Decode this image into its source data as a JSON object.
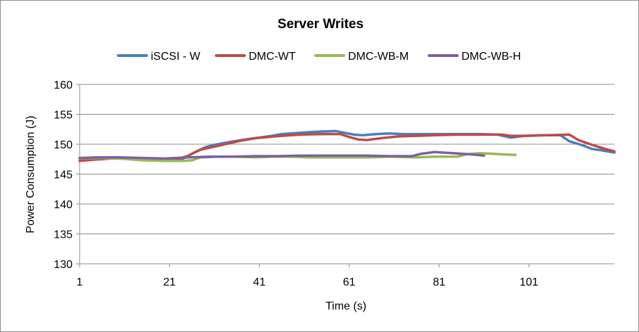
{
  "chart_data": {
    "type": "line",
    "title": "Server Writes",
    "xlabel": "Time (s)",
    "ylabel": "Power Consumption (J)",
    "xlim": [
      1,
      120
    ],
    "ylim": [
      130,
      160
    ],
    "y_ticks": [
      130,
      135,
      140,
      145,
      150,
      155,
      160
    ],
    "x_ticks": [
      1,
      21,
      41,
      61,
      81,
      101
    ],
    "grid": "horizontal",
    "legend": "top",
    "series": [
      {
        "name": "iSCSI - W",
        "color": "#4a7ebb",
        "points": [
          [
            1,
            147.6
          ],
          [
            5,
            147.8
          ],
          [
            10,
            147.7
          ],
          [
            15,
            147.6
          ],
          [
            20,
            147.5
          ],
          [
            23,
            147.6
          ],
          [
            25,
            148.0
          ],
          [
            27,
            148.8
          ],
          [
            29,
            149.5
          ],
          [
            31,
            149.9
          ],
          [
            34,
            150.3
          ],
          [
            37,
            150.7
          ],
          [
            40,
            151.0
          ],
          [
            43,
            151.3
          ],
          [
            46,
            151.7
          ],
          [
            50,
            151.9
          ],
          [
            54,
            152.1
          ],
          [
            58,
            152.2
          ],
          [
            60,
            151.9
          ],
          [
            62,
            151.6
          ],
          [
            64,
            151.5
          ],
          [
            67,
            151.7
          ],
          [
            70,
            151.8
          ],
          [
            73,
            151.7
          ],
          [
            80,
            151.7
          ],
          [
            90,
            151.7
          ],
          [
            94,
            151.6
          ],
          [
            97,
            151.1
          ],
          [
            100,
            151.4
          ],
          [
            104,
            151.5
          ],
          [
            108,
            151.5
          ],
          [
            110,
            150.5
          ],
          [
            113,
            149.8
          ],
          [
            115,
            149.2
          ],
          [
            117,
            149.0
          ],
          [
            120,
            148.6
          ]
        ]
      },
      {
        "name": "DMC-WT",
        "color": "#be4b48",
        "points": [
          [
            1,
            147.2
          ],
          [
            4,
            147.4
          ],
          [
            8,
            147.6
          ],
          [
            12,
            147.6
          ],
          [
            16,
            147.5
          ],
          [
            20,
            147.5
          ],
          [
            24,
            147.6
          ],
          [
            26,
            148.4
          ],
          [
            28,
            149.1
          ],
          [
            31,
            149.6
          ],
          [
            34,
            150.1
          ],
          [
            37,
            150.6
          ],
          [
            40,
            151.0
          ],
          [
            43,
            151.2
          ],
          [
            46,
            151.4
          ],
          [
            50,
            151.6
          ],
          [
            55,
            151.7
          ],
          [
            59,
            151.7
          ],
          [
            61,
            151.2
          ],
          [
            63,
            150.8
          ],
          [
            65,
            150.7
          ],
          [
            68,
            151.0
          ],
          [
            72,
            151.3
          ],
          [
            76,
            151.4
          ],
          [
            80,
            151.5
          ],
          [
            85,
            151.6
          ],
          [
            90,
            151.6
          ],
          [
            95,
            151.6
          ],
          [
            97,
            151.4
          ],
          [
            100,
            151.4
          ],
          [
            105,
            151.5
          ],
          [
            110,
            151.6
          ],
          [
            112,
            150.7
          ],
          [
            115,
            149.9
          ],
          [
            118,
            149.2
          ],
          [
            120,
            148.8
          ]
        ]
      },
      {
        "name": "DMC-WB-M",
        "color": "#98b954",
        "points": [
          [
            1,
            147.6
          ],
          [
            5,
            147.7
          ],
          [
            10,
            147.6
          ],
          [
            15,
            147.3
          ],
          [
            20,
            147.2
          ],
          [
            24,
            147.2
          ],
          [
            26,
            147.3
          ],
          [
            28,
            147.8
          ],
          [
            32,
            147.9
          ],
          [
            36,
            147.9
          ],
          [
            40,
            147.8
          ],
          [
            44,
            147.9
          ],
          [
            48,
            147.9
          ],
          [
            52,
            147.8
          ],
          [
            60,
            147.8
          ],
          [
            65,
            147.8
          ],
          [
            70,
            147.9
          ],
          [
            76,
            147.8
          ],
          [
            80,
            147.9
          ],
          [
            85,
            147.9
          ],
          [
            87,
            148.3
          ],
          [
            90,
            148.5
          ],
          [
            93,
            148.4
          ],
          [
            95,
            148.3
          ],
          [
            98,
            148.2
          ]
        ]
      },
      {
        "name": "DMC-WB-H",
        "color": "#7d60a0",
        "points": [
          [
            1,
            147.7
          ],
          [
            5,
            147.8
          ],
          [
            10,
            147.8
          ],
          [
            15,
            147.7
          ],
          [
            20,
            147.6
          ],
          [
            25,
            147.8
          ],
          [
            30,
            147.9
          ],
          [
            35,
            147.9
          ],
          [
            40,
            148.0
          ],
          [
            45,
            148.0
          ],
          [
            50,
            148.1
          ],
          [
            55,
            148.1
          ],
          [
            60,
            148.1
          ],
          [
            65,
            148.1
          ],
          [
            70,
            148.0
          ],
          [
            75,
            148.0
          ],
          [
            77,
            148.4
          ],
          [
            80,
            148.7
          ],
          [
            84,
            148.5
          ],
          [
            88,
            148.3
          ],
          [
            91,
            148.1
          ]
        ]
      }
    ]
  }
}
